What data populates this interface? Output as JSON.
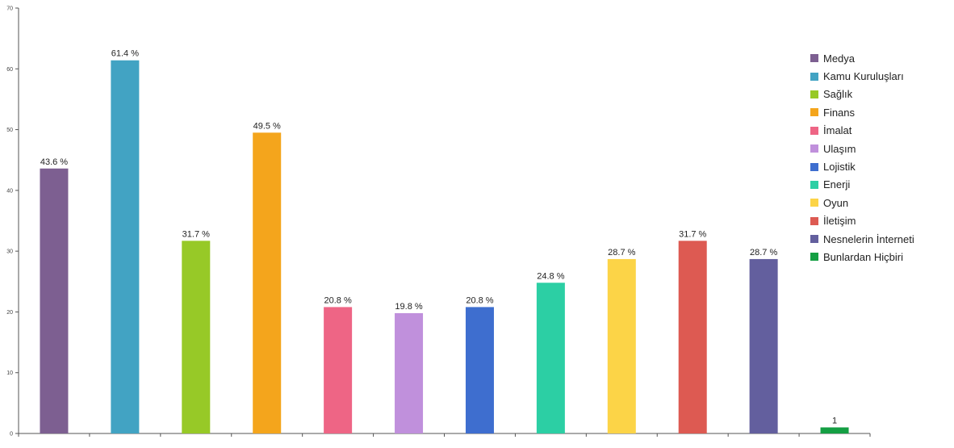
{
  "chart_data": {
    "type": "bar",
    "title": "",
    "xlabel": "",
    "ylabel": "",
    "ylim": [
      0,
      70
    ],
    "yticks": [
      0,
      10,
      20,
      30,
      40,
      50,
      60,
      70
    ],
    "grid": false,
    "legend_position": "right",
    "categories": [
      "Medya",
      "Kamu Kuruluşları",
      "Sağlık",
      "Finans",
      "İmalat",
      "Ulaşım",
      "Lojistik",
      "Enerji",
      "Oyun",
      "İletişim",
      "Nesnelerin İnterneti",
      "Bunlardan Hiçbiri"
    ],
    "values": [
      43.6,
      61.4,
      31.7,
      49.5,
      20.8,
      19.8,
      20.8,
      24.8,
      28.7,
      31.7,
      28.7,
      1
    ],
    "data_labels": [
      "43.6 %",
      "61.4 %",
      "31.7 %",
      "49.5 %",
      "20.8 %",
      "19.8 %",
      "20.8 %",
      "24.8 %",
      "28.7 %",
      "31.7 %",
      "28.7 %",
      "1"
    ],
    "colors": [
      "#7d5f91",
      "#42a3c3",
      "#97c927",
      "#f4a51c",
      "#ee6585",
      "#c090dc",
      "#3e6ecf",
      "#2ccfa4",
      "#fcd447",
      "#dd5a52",
      "#635f9e",
      "#149f43"
    ]
  }
}
